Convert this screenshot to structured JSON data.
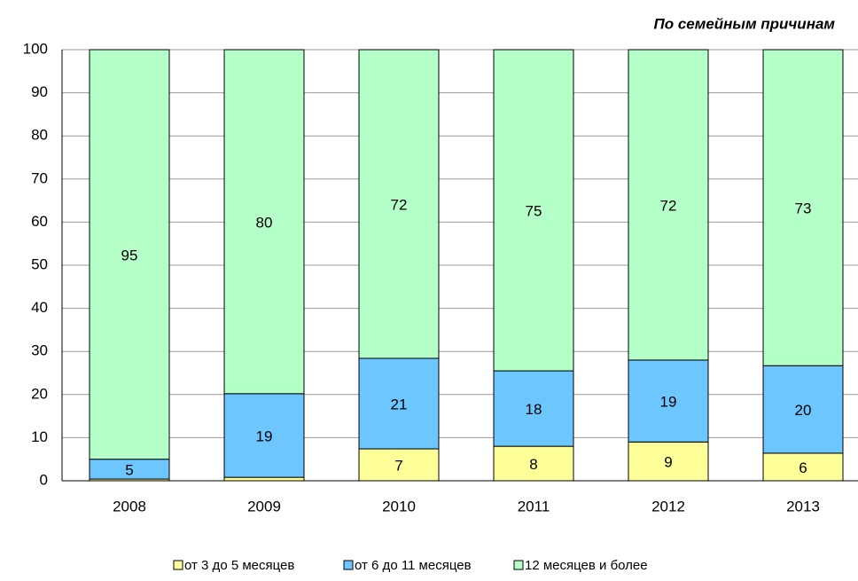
{
  "chart_data": {
    "type": "stacked_bar",
    "title": "По семейным причинам",
    "categories": [
      "2008",
      "2009",
      "2010",
      "2011",
      "2012",
      "2013"
    ],
    "series": [
      {
        "name": "от 3 до 5 месяцев",
        "color": "#ffff99",
        "values": [
          0.4,
          0.8,
          7.4,
          8,
          9,
          6.4
        ],
        "value_labels": [
          null,
          null,
          "7",
          "8",
          "9",
          "6"
        ]
      },
      {
        "name": "от 6 до 11 месяцев",
        "color": "#6ec6ff",
        "values": [
          4.6,
          19.4,
          21,
          17.5,
          19,
          20.3
        ],
        "value_labels": [
          "5",
          "19",
          "21",
          "18",
          "19",
          "20"
        ]
      },
      {
        "name": "12 месяцев и более",
        "color": "#b5ffc8",
        "values": [
          95,
          79.8,
          71.6,
          74.5,
          72,
          73.3
        ],
        "value_labels": [
          "95",
          "80",
          "72",
          "75",
          "72",
          "73"
        ]
      }
    ],
    "ylim": [
      0,
      100
    ],
    "yticks": [
      0,
      10,
      20,
      30,
      40,
      50,
      60,
      70,
      80,
      90,
      100
    ],
    "grid": true,
    "legend": "bottom"
  }
}
